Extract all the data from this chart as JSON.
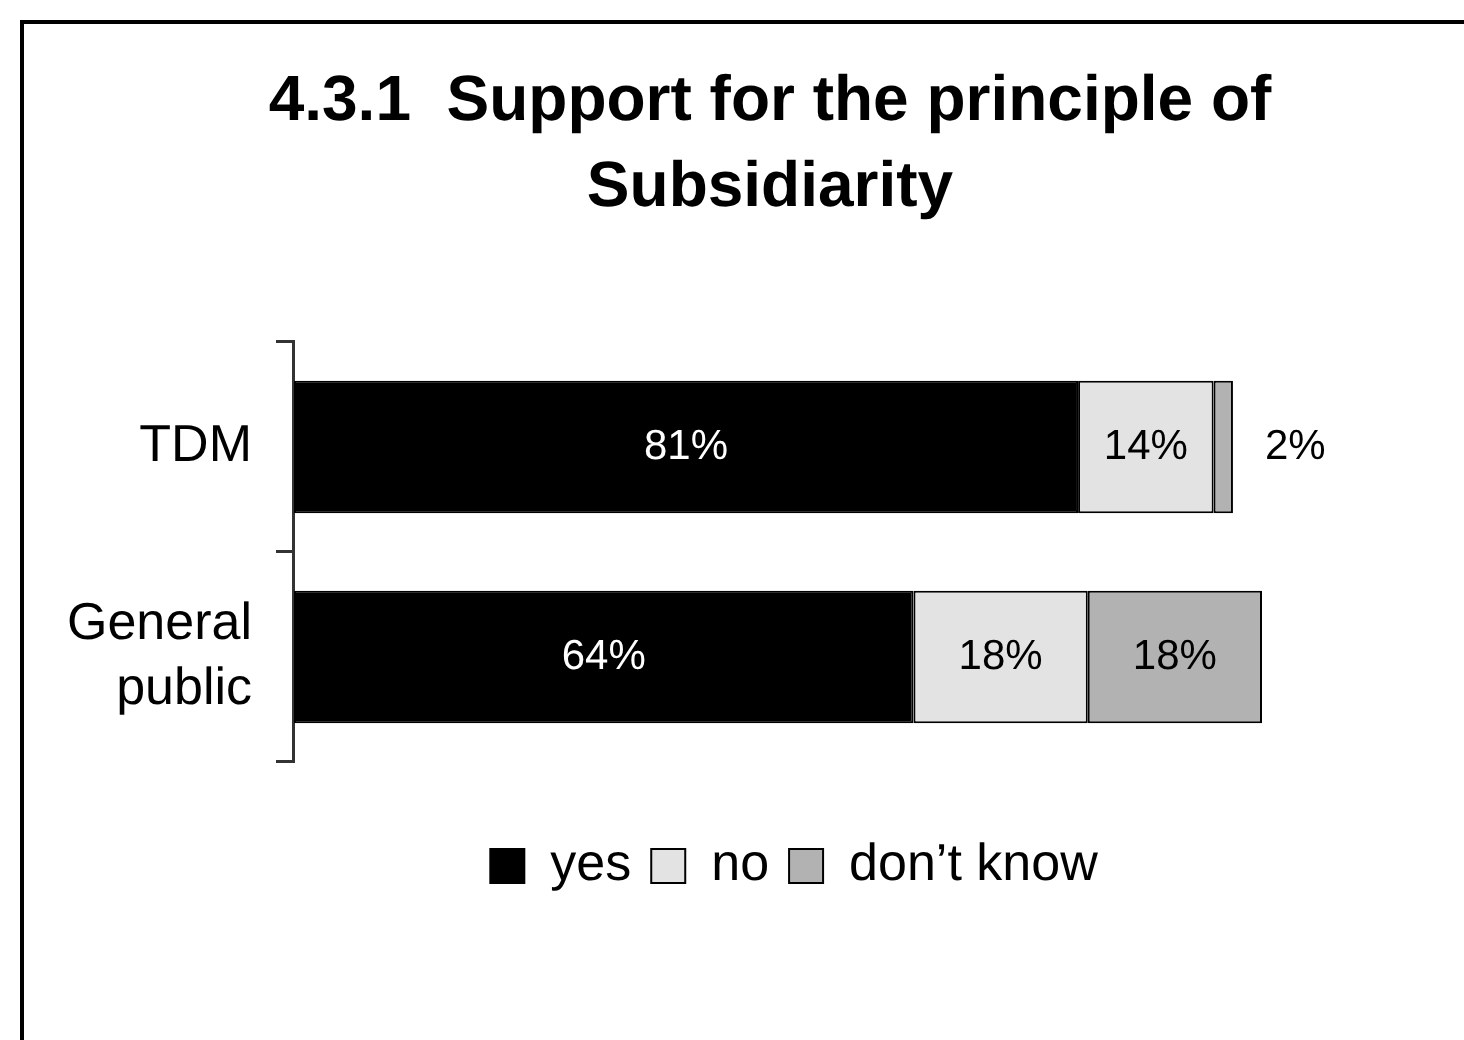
{
  "chart_data": {
    "type": "bar",
    "title": "4.3.1  Support for the principle of Subsidiarity",
    "orientation": "horizontal",
    "stacked": true,
    "categories": [
      "TDM",
      "General public"
    ],
    "xlim": [
      0,
      100
    ],
    "tick_labels": "y",
    "grid": false,
    "legend": "bottom",
    "series": [
      {
        "name": "yes",
        "color": "#000000",
        "values": [
          81,
          64
        ],
        "value_labels": [
          "81%",
          "64%"
        ]
      },
      {
        "name": "no",
        "color": "#e3e3e3",
        "values": [
          14,
          18
        ],
        "value_labels": [
          "14%",
          "18%"
        ]
      },
      {
        "name": "don’t know",
        "color": "#b2b2b2",
        "values": [
          2,
          18
        ],
        "value_labels": [
          "2%",
          "18%"
        ]
      }
    ]
  }
}
